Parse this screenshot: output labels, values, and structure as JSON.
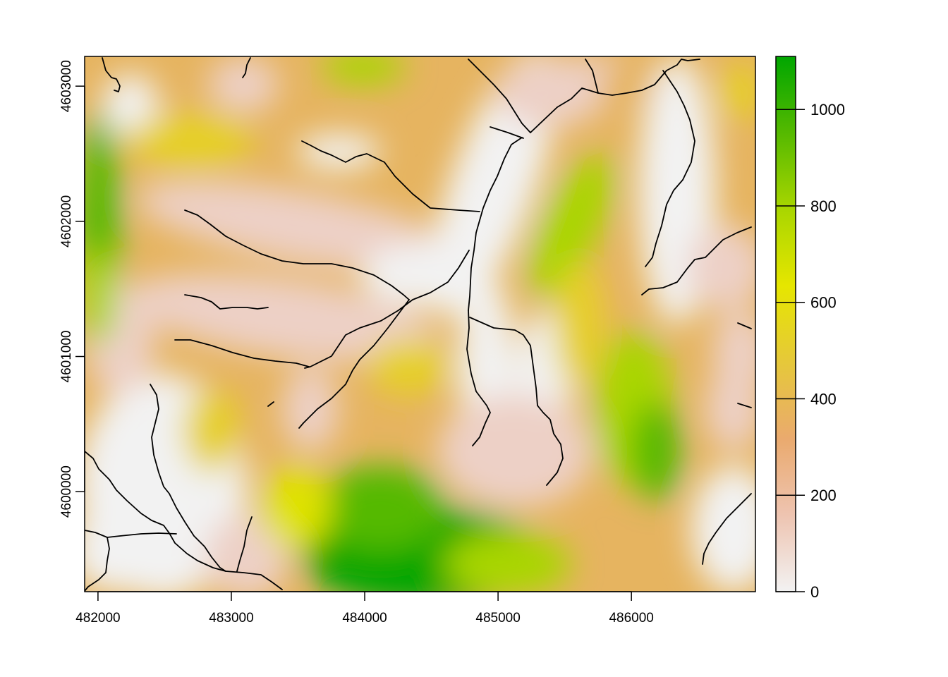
{
  "chart_data": {
    "type": "heatmap",
    "title": "",
    "xlabel": "",
    "ylabel": "",
    "xlim": [
      481900,
      486930
    ],
    "ylim": [
      4599260,
      4603220
    ],
    "x_ticks": [
      "482000",
      "483000",
      "484000",
      "485000",
      "486000"
    ],
    "y_ticks": [
      "4600000",
      "4601000",
      "4602000",
      "4603000"
    ],
    "colorbar": {
      "range": [
        0,
        1110
      ],
      "ticks": [
        "0",
        "200",
        "400",
        "600",
        "800",
        "1000"
      ],
      "colors": [
        "#f2f2f2",
        "#eec4b1",
        "#eaaa6e",
        "#e6c83a",
        "#e6e600",
        "#a9d600",
        "#55b900",
        "#00a600"
      ]
    },
    "streams_color": "#000000",
    "grid": false,
    "legend": "right"
  }
}
